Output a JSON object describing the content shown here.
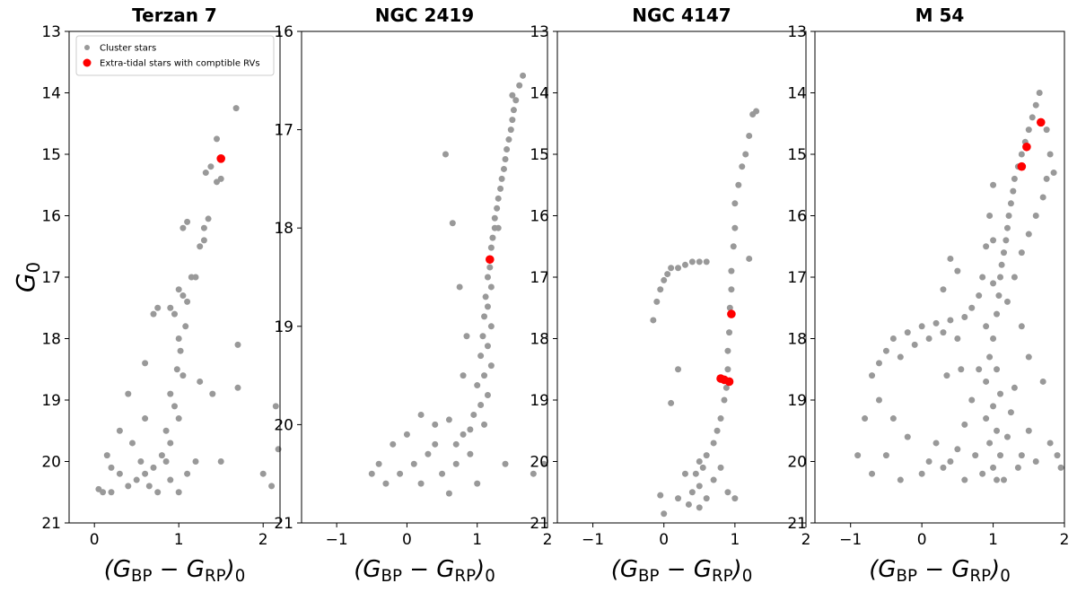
{
  "chart_data": [
    {
      "type": "scatter",
      "title": "Terzan 7",
      "xlabel": [
        "(G",
        "BP",
        " − G",
        "RP",
        ")",
        "0"
      ],
      "ylabel": [
        "G",
        "0"
      ],
      "xlim": [
        -0.3,
        2.2
      ],
      "ylim": [
        13,
        21
      ],
      "invert_y": true,
      "xticks": [
        0,
        1,
        2
      ],
      "yticks": [
        13,
        14,
        15,
        16,
        17,
        18,
        19,
        20,
        21
      ],
      "legend": "upper left",
      "series": [
        {
          "name": "Cluster stars",
          "color": "#999999",
          "x": [
            1.68,
            1.45,
            1.5,
            1.45,
            1.32,
            1.38,
            1.35,
            1.3,
            1.25,
            1.3,
            1.1,
            1.05,
            1.15,
            1.2,
            1.0,
            1.05,
            1.1,
            0.95,
            1.08,
            0.9,
            0.75,
            0.7,
            1.0,
            1.02,
            0.98,
            1.05,
            0.9,
            0.95,
            1.0,
            0.85,
            0.9,
            0.8,
            0.7,
            0.6,
            0.5,
            0.4,
            0.3,
            0.2,
            0.65,
            0.75,
            0.9,
            1.0,
            1.1,
            1.2,
            0.05,
            0.1,
            0.15,
            0.3,
            0.6,
            0.4,
            0.6,
            1.7,
            1.7,
            2.15,
            2.0,
            2.1,
            2.18,
            1.4,
            1.25,
            0.55,
            0.45,
            1.5,
            0.2,
            0.85
          ],
          "values": [
            14.25,
            14.75,
            15.4,
            15.45,
            15.3,
            15.2,
            16.05,
            16.2,
            16.5,
            16.4,
            16.1,
            16.2,
            17.0,
            17.0,
            17.2,
            17.3,
            17.4,
            17.6,
            17.8,
            17.5,
            17.5,
            17.6,
            18.0,
            18.2,
            18.5,
            18.6,
            18.9,
            19.1,
            19.3,
            19.5,
            19.7,
            19.9,
            20.1,
            20.2,
            20.3,
            20.4,
            20.2,
            20.1,
            20.4,
            20.5,
            20.3,
            20.5,
            20.2,
            20.0,
            20.45,
            20.5,
            19.9,
            19.5,
            19.3,
            18.9,
            18.4,
            18.1,
            18.8,
            19.1,
            20.2,
            20.4,
            19.8,
            18.9,
            18.7,
            20.0,
            19.7,
            20.0,
            20.5,
            20.0
          ]
        },
        {
          "name": "Extra-tidal stars with comptible RVs",
          "color": "#ff0000",
          "x": [
            1.5
          ],
          "values": [
            15.07
          ]
        }
      ]
    },
    {
      "type": "scatter",
      "title": "NGC 2419",
      "xlabel": [
        "(G",
        "BP",
        " − G",
        "RP",
        ")",
        "0"
      ],
      "xlim": [
        -1.5,
        2
      ],
      "ylim": [
        16,
        21
      ],
      "invert_y": true,
      "xticks": [
        {
          "value": -1,
          "label": "−1"
        },
        0,
        1,
        2
      ],
      "yticks": [
        16,
        17,
        18,
        19,
        20,
        21
      ],
      "series": [
        {
          "color": "#999999",
          "x": [
            1.65,
            1.6,
            1.5,
            1.55,
            1.52,
            1.5,
            1.48,
            1.45,
            1.42,
            1.4,
            1.38,
            1.35,
            1.33,
            1.3,
            1.28,
            1.25,
            1.25,
            1.22,
            1.2,
            1.18,
            1.15,
            1.2,
            1.12,
            1.15,
            1.1,
            1.2,
            1.08,
            1.15,
            1.05,
            1.2,
            1.1,
            1.0,
            1.15,
            1.05,
            0.95,
            1.1,
            0.9,
            0.8,
            0.6,
            0.4,
            0.2,
            0.0,
            -0.2,
            -0.4,
            -0.5,
            -0.3,
            0.1,
            0.3,
            0.5,
            0.7,
            0.9,
            1.0,
            0.6,
            0.2,
            0.55,
            0.65,
            0.75,
            0.85,
            0.8,
            1.8,
            1.95,
            1.4,
            1.3,
            -0.1,
            0.4,
            0.7
          ],
          "values": [
            16.45,
            16.55,
            16.65,
            16.7,
            16.8,
            16.9,
            17.0,
            17.1,
            17.2,
            17.3,
            17.4,
            17.5,
            17.6,
            17.7,
            17.8,
            17.9,
            18.0,
            18.1,
            18.2,
            18.4,
            18.5,
            18.6,
            18.7,
            18.8,
            18.9,
            19.0,
            19.1,
            19.2,
            19.3,
            19.4,
            19.5,
            19.6,
            19.7,
            19.8,
            19.9,
            20.0,
            20.05,
            20.1,
            19.95,
            20.0,
            19.9,
            20.1,
            20.2,
            20.4,
            20.5,
            20.6,
            20.4,
            20.3,
            20.5,
            20.4,
            20.3,
            20.6,
            20.7,
            20.6,
            17.25,
            17.95,
            18.6,
            19.1,
            19.5,
            20.5,
            20.4,
            20.4,
            18.0,
            20.5,
            20.2,
            20.2
          ]
        },
        {
          "color": "#ff0000",
          "x": [
            1.18
          ],
          "values": [
            18.32
          ]
        }
      ]
    },
    {
      "type": "scatter",
      "title": "NGC 4147",
      "xlabel": [
        "(G",
        "BP",
        " − G",
        "RP",
        ")",
        "0"
      ],
      "xlim": [
        -1.5,
        2
      ],
      "ylim": [
        13,
        21
      ],
      "invert_y": true,
      "xticks": [
        {
          "value": -1,
          "label": "−1"
        },
        0,
        1,
        2
      ],
      "yticks": [
        13,
        14,
        15,
        16,
        17,
        18,
        19,
        20,
        21
      ],
      "series": [
        {
          "color": "#999999",
          "x": [
            1.3,
            1.25,
            1.2,
            1.1,
            1.05,
            1.0,
            1.0,
            0.98,
            0.95,
            0.95,
            0.93,
            0.92,
            0.9,
            0.9,
            0.88,
            0.85,
            0.8,
            0.75,
            0.7,
            0.6,
            0.5,
            0.45,
            0.5,
            0.6,
            0.4,
            0.35,
            0.7,
            0.8,
            0.3,
            0.55,
            1.2,
            1.15,
            -0.1,
            -0.05,
            0.0,
            0.05,
            0.1,
            0.2,
            0.3,
            0.4,
            0.5,
            0.6,
            -0.15,
            0.2,
            0.1,
            -0.05,
            0.0,
            0.2,
            0.5,
            0.9,
            1.0
          ],
          "values": [
            14.3,
            14.35,
            14.7,
            15.2,
            15.5,
            15.8,
            16.2,
            16.5,
            16.9,
            17.2,
            17.5,
            17.9,
            18.2,
            18.5,
            18.8,
            19.0,
            19.3,
            19.5,
            19.7,
            19.9,
            20.0,
            20.2,
            20.4,
            20.6,
            20.5,
            20.7,
            20.3,
            20.1,
            20.2,
            20.1,
            16.7,
            15.0,
            17.4,
            17.2,
            17.05,
            16.95,
            16.85,
            16.85,
            16.8,
            16.75,
            16.75,
            16.75,
            17.7,
            18.5,
            19.05,
            20.55,
            20.85,
            20.6,
            20.75,
            20.5,
            20.6
          ]
        },
        {
          "color": "#ff0000",
          "x": [
            0.95,
            0.8,
            0.85,
            0.92
          ],
          "values": [
            17.6,
            18.65,
            18.67,
            18.7
          ]
        }
      ]
    },
    {
      "type": "scatter",
      "title": "M 54",
      "xlabel": [
        "(G",
        "BP",
        " − G",
        "RP",
        ")",
        "0"
      ],
      "xlim": [
        -1.5,
        2
      ],
      "ylim": [
        13,
        21
      ],
      "invert_y": true,
      "xticks": [
        {
          "value": -1,
          "label": "−1"
        },
        0,
        1,
        2
      ],
      "yticks": [
        13,
        14,
        15,
        16,
        17,
        18,
        19,
        20,
        21
      ],
      "series": [
        {
          "color": "#999999",
          "x": [
            1.65,
            1.6,
            1.55,
            1.5,
            1.45,
            1.4,
            1.35,
            1.3,
            1.28,
            1.25,
            1.22,
            1.2,
            1.18,
            1.15,
            1.12,
            1.1,
            1.08,
            1.05,
            1.75,
            1.8,
            1.75,
            1.7,
            1.6,
            1.5,
            1.4,
            1.3,
            1.2,
            1.85,
            1.0,
            0.95,
            0.9,
            0.85,
            0.8,
            0.7,
            0.6,
            0.4,
            0.2,
            0.0,
            -0.2,
            -0.4,
            -0.5,
            -0.6,
            -0.7,
            -0.3,
            -0.1,
            0.1,
            0.3,
            0.5,
            0.4,
            0.5,
            0.3,
            1.0,
            0.95,
            1.05,
            0.9,
            1.1,
            1.0,
            0.9,
            1.05,
            0.95,
            1.1,
            1.0,
            0.85,
            1.15,
            0.75,
            1.2,
            1.25,
            1.3,
            0.8,
            0.7,
            0.6,
            0.5,
            0.4,
            0.3,
            0.2,
            0.1,
            0.0,
            -0.2,
            -0.4,
            -0.6,
            -0.8,
            -0.5,
            -0.3,
            0.6,
            1.4,
            1.5,
            1.6,
            1.8,
            1.9,
            1.95,
            1.7,
            1.5,
            1.4,
            -0.9,
            -0.7,
            0.55,
            0.35,
            1.05,
            1.35,
            0.9,
            1.0,
            1.0
          ],
          "values": [
            14.0,
            14.2,
            14.4,
            14.6,
            14.8,
            15.0,
            15.2,
            15.4,
            15.6,
            15.8,
            16.0,
            16.2,
            16.4,
            16.6,
            16.8,
            17.0,
            17.3,
            17.6,
            14.6,
            15.0,
            15.4,
            15.7,
            16.0,
            16.3,
            16.6,
            17.0,
            17.4,
            15.3,
            15.5,
            16.0,
            16.5,
            17.0,
            17.3,
            17.5,
            17.65,
            17.7,
            17.75,
            17.8,
            17.9,
            18.0,
            18.2,
            18.4,
            18.6,
            18.3,
            18.1,
            18.0,
            17.9,
            18.0,
            16.7,
            16.9,
            17.2,
            18.0,
            18.3,
            18.5,
            18.7,
            18.9,
            19.1,
            19.3,
            19.5,
            19.7,
            19.9,
            20.1,
            20.2,
            20.3,
            19.9,
            19.6,
            19.2,
            18.8,
            18.5,
            19.0,
            19.4,
            19.8,
            20.0,
            20.1,
            19.7,
            20.0,
            20.2,
            19.6,
            19.3,
            19.0,
            19.3,
            19.9,
            20.3,
            20.3,
            19.9,
            19.5,
            20.0,
            19.7,
            19.9,
            20.1,
            18.7,
            18.3,
            17.8,
            19.9,
            20.2,
            18.5,
            18.6,
            20.3,
            20.1,
            17.8,
            17.1,
            16.4
          ]
        },
        {
          "color": "#ff0000",
          "x": [
            1.67,
            1.47,
            1.4
          ],
          "values": [
            14.48,
            14.88,
            15.2
          ]
        }
      ]
    }
  ]
}
